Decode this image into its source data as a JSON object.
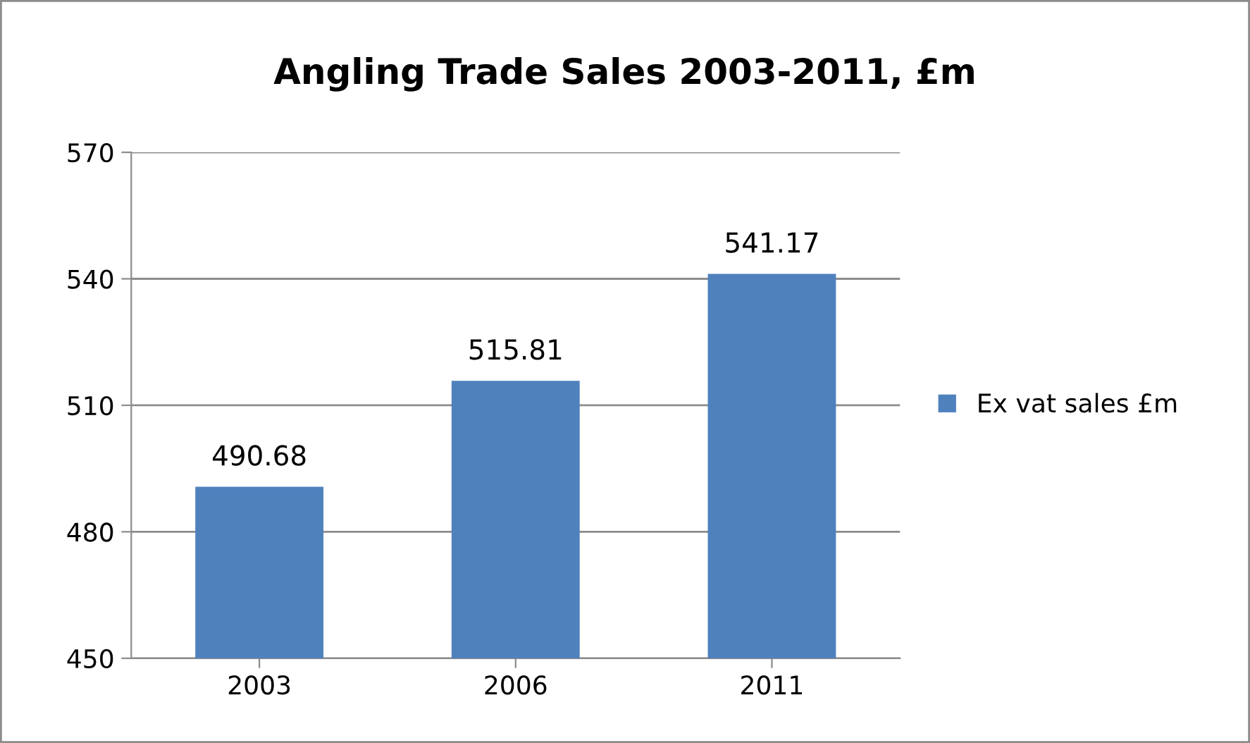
{
  "chart_data": {
    "type": "bar",
    "title": "Angling Trade Sales 2003-2011, £m",
    "categories": [
      "2003",
      "2006",
      "2011"
    ],
    "series": [
      {
        "name": "Ex vat sales £m",
        "color": "#4f81bd",
        "values": [
          490.68,
          515.81,
          541.17
        ]
      }
    ],
    "ylim": [
      450,
      570
    ],
    "yticks": [
      450,
      480,
      510,
      540,
      570
    ],
    "grid": "y",
    "legend": "right",
    "data_labels": true
  }
}
